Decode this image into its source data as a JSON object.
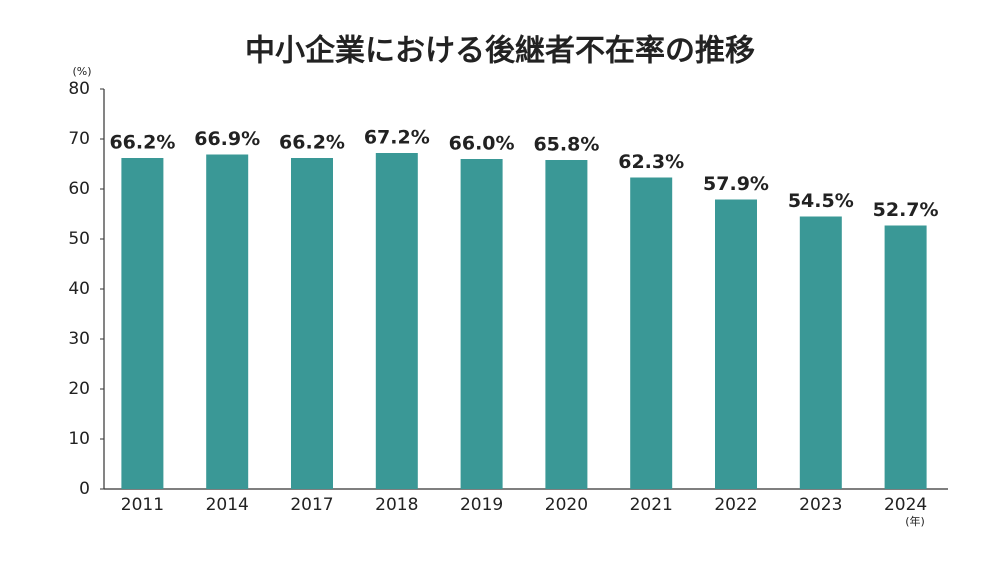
{
  "chart_data": {
    "type": "bar",
    "title": "中小企業における後継者不在率の推移",
    "y_label": "(%)",
    "x_label": "(年)",
    "categories": [
      "2011",
      "2014",
      "2017",
      "2018",
      "2019",
      "2020",
      "2021",
      "2022",
      "2023",
      "2024"
    ],
    "values": [
      66.2,
      66.9,
      66.2,
      67.2,
      66.0,
      65.8,
      62.3,
      57.9,
      54.5,
      52.7
    ],
    "value_labels": [
      "66.2%",
      "66.9%",
      "66.2%",
      "67.2%",
      "66.0%",
      "65.8%",
      "62.3%",
      "57.9%",
      "54.5%",
      "52.7%"
    ],
    "color": "#3a9896",
    "ylim": [
      0,
      80
    ],
    "yticks": [
      0,
      10,
      20,
      30,
      40,
      50,
      60,
      70,
      80
    ],
    "grid": false
  }
}
